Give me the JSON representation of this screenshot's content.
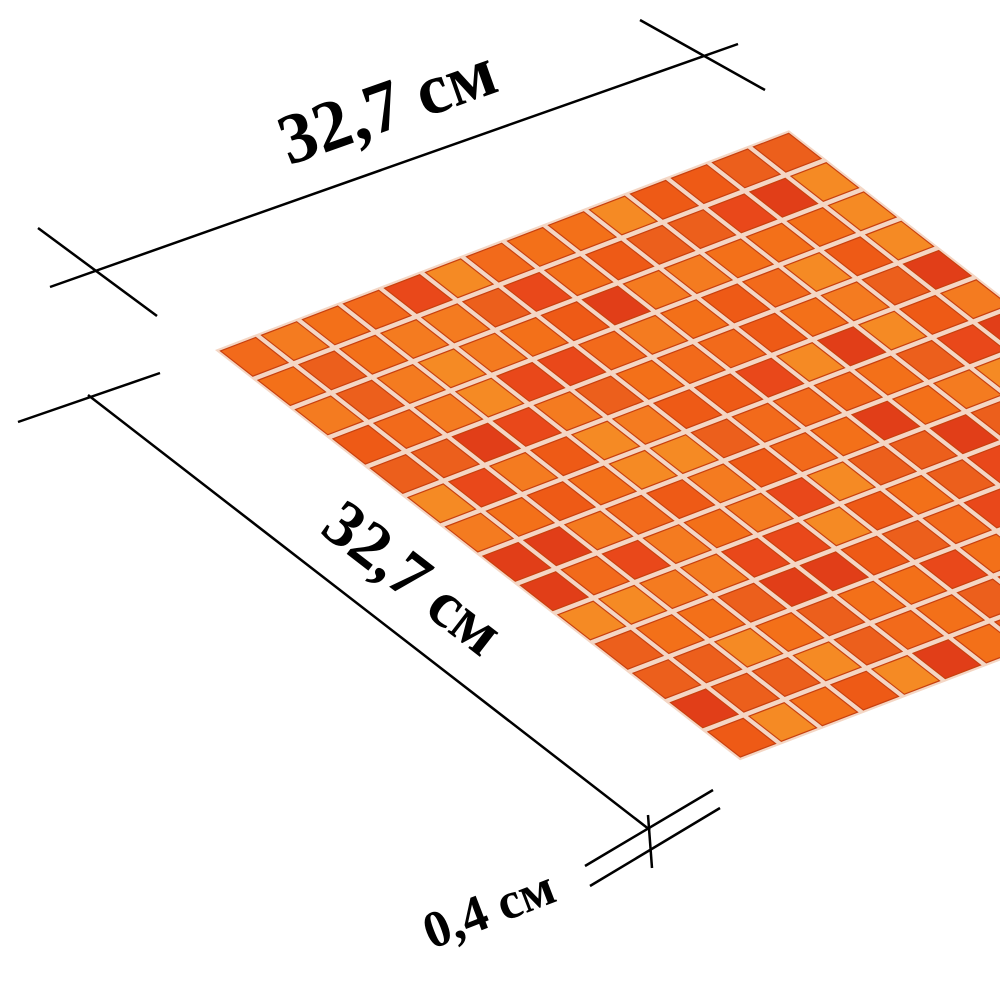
{
  "dimensions": {
    "width": "32,7 см",
    "length": "32,7 см",
    "thickness": "0,4 см"
  }
}
